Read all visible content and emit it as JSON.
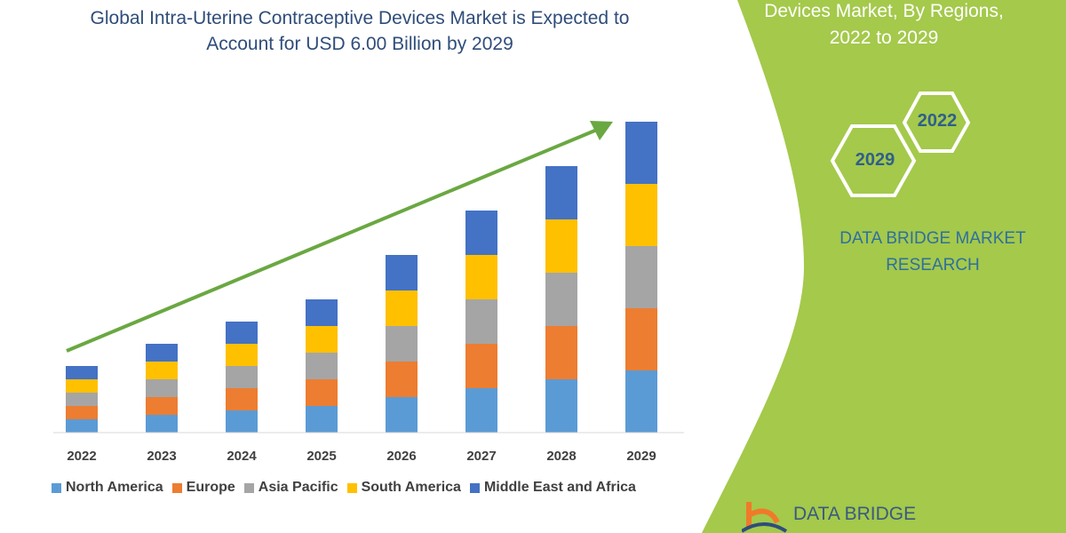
{
  "title_lines": [
    "Global Intra-Uterine Contraceptive Devices Market is Expected to",
    "Account for USD 6.00 Billion by 2029"
  ],
  "side_panel": {
    "title_lines": [
      "Devices Market, By Regions,",
      "2022 to 2029"
    ],
    "hex_labels": [
      "2022",
      "2029"
    ],
    "brand_lines": [
      "DATA BRIDGE MARKET",
      "RESEARCH"
    ],
    "logo_text": "DATA BRIDGE",
    "panel_color": "#a4c94b"
  },
  "chart_data": {
    "type": "bar",
    "stacked": true,
    "categories": [
      "2022",
      "2023",
      "2024",
      "2025",
      "2026",
      "2027",
      "2028",
      "2029"
    ],
    "series": [
      {
        "name": "North America",
        "color": "#5b9bd5",
        "values": [
          15,
          20,
          25,
          30,
          40,
          50,
          60,
          70
        ]
      },
      {
        "name": "Europe",
        "color": "#ed7d31",
        "values": [
          15,
          20,
          25,
          30,
          40,
          50,
          60,
          70
        ]
      },
      {
        "name": "Asia Pacific",
        "color": "#a5a5a5",
        "values": [
          15,
          20,
          25,
          30,
          40,
          50,
          60,
          70
        ]
      },
      {
        "name": "South America",
        "color": "#ffc000",
        "values": [
          15,
          20,
          25,
          30,
          40,
          50,
          60,
          70
        ]
      },
      {
        "name": "Middle East and Africa",
        "color": "#4472c4",
        "values": [
          15,
          20,
          25,
          30,
          40,
          50,
          60,
          70
        ]
      }
    ],
    "legend_position": "bottom",
    "grid": false,
    "trend_arrow_color": "#6aa842"
  }
}
